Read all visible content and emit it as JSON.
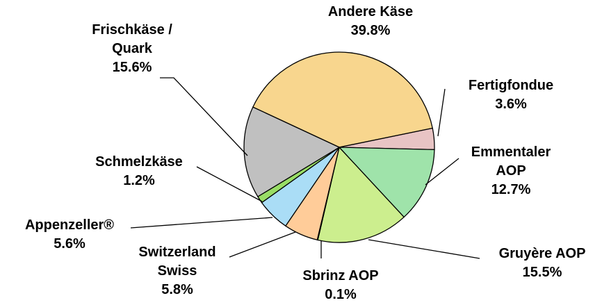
{
  "chart_data": {
    "type": "pie",
    "categories": [
      "Andere Käse",
      "Fertigfondue",
      "Emmentaler AOP",
      "Gruyère AOP",
      "Sbrinz AOP",
      "Switzerland Swiss",
      "Appenzeller®",
      "Schmelzkäse",
      "Frischkäse / Quark"
    ],
    "values": [
      39.8,
      3.6,
      12.7,
      15.5,
      0.1,
      5.8,
      5.6,
      1.2,
      15.6
    ],
    "value_labels": [
      "39.8%",
      "3.6%",
      "12.7%",
      "15.5%",
      "0.1%",
      "5.8%",
      "5.6%",
      "1.2%",
      "15.6%"
    ],
    "colors": [
      "#f8d68e",
      "#e8c4c4",
      "#9fe3aa",
      "#ccee8e",
      "#e8e8e8",
      "#ffcc99",
      "#aaddf6",
      "#99dd66",
      "#c0c0c0"
    ]
  }
}
